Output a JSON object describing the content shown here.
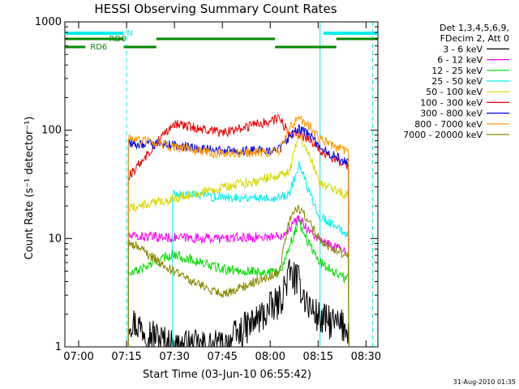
{
  "chart_data": {
    "type": "line",
    "title": "HESSI Observing Summary Count Rates",
    "xlabel": "Start Time (03-Jun-10 06:55:42)",
    "ylabel": "Count Rate (s⁻¹ detector⁻¹)",
    "y_scale": "log",
    "ylim": [
      1,
      1000
    ],
    "xlim": [
      6.928,
      8.562
    ],
    "x_ticks": [
      {
        "value": 7.0,
        "label": "07:00"
      },
      {
        "value": 7.25,
        "label": "07:15"
      },
      {
        "value": 7.5,
        "label": "07:30"
      },
      {
        "value": 7.75,
        "label": "07:45"
      },
      {
        "value": 8.0,
        "label": "08:00"
      },
      {
        "value": 8.25,
        "label": "08:15"
      },
      {
        "value": 8.5,
        "label": "08:30"
      }
    ],
    "y_ticks": [
      {
        "value": 1,
        "label": "1"
      },
      {
        "value": 10,
        "label": "10"
      },
      {
        "value": 100,
        "label": "100"
      },
      {
        "value": 1000,
        "label": "1000"
      }
    ],
    "legend": {
      "placement": "right",
      "header": [
        "Det 1,3,4,5,6,9,",
        "FDecim 2, Att 0"
      ]
    },
    "series": [
      {
        "name": "3 - 6 keV",
        "color": "#000000",
        "x": [
          6.928,
          7.26,
          7.49,
          7.75,
          8.05,
          8.1,
          8.15,
          8.2,
          8.26,
          8.4,
          8.41,
          8.562
        ],
        "y": [
          null,
          1.8,
          1.0,
          1.0,
          2.6,
          4.8,
          3.9,
          2.4,
          1.8,
          1.5,
          null,
          null
        ]
      },
      {
        "name": "6 - 12 keV",
        "color": "#ff00ff",
        "x": [
          6.928,
          7.26,
          7.49,
          7.75,
          8.05,
          8.1,
          8.15,
          8.2,
          8.26,
          8.4,
          8.41,
          8.562
        ],
        "y": [
          null,
          10.5,
          10.2,
          10.0,
          10.5,
          12.5,
          15.5,
          12.0,
          9.5,
          7.5,
          null,
          null
        ]
      },
      {
        "name": "12 - 25 keV",
        "color": "#00dd00",
        "x": [
          6.928,
          7.26,
          7.49,
          7.75,
          8.05,
          8.1,
          8.15,
          8.2,
          8.26,
          8.4,
          8.41,
          8.562
        ],
        "y": [
          null,
          4.6,
          7.2,
          5.2,
          4.8,
          8.5,
          14.5,
          9.0,
          6.0,
          4.2,
          null,
          null
        ]
      },
      {
        "name": "25 - 50 keV",
        "color": "#00eeee",
        "x": [
          6.928,
          7.26,
          7.49,
          7.75,
          8.05,
          8.1,
          8.15,
          8.2,
          8.26,
          8.4,
          8.41,
          8.562
        ],
        "y": [
          null,
          null,
          26,
          24,
          24,
          26,
          48,
          28,
          16,
          11,
          null,
          null
        ]
      },
      {
        "name": "50 - 100 keV",
        "color": "#d8d800",
        "x": [
          6.928,
          7.26,
          7.49,
          7.75,
          8.05,
          8.1,
          8.15,
          8.2,
          8.26,
          8.4,
          8.41,
          8.562
        ],
        "y": [
          null,
          19,
          null,
          null,
          null,
          40,
          95,
          60,
          33,
          25,
          null,
          null
        ]
      },
      {
        "name": "100 - 300 keV",
        "color": "#ee0000",
        "x": [
          6.928,
          7.26,
          7.49,
          7.75,
          8.05,
          8.1,
          8.15,
          8.2,
          8.26,
          8.4,
          8.41,
          8.562
        ],
        "y": [
          null,
          37,
          115,
          94,
          128,
          92,
          90,
          85,
          65,
          47,
          null,
          null
        ]
      },
      {
        "name": "300 - 800 keV",
        "color": "#0000ee",
        "x": [
          6.928,
          7.26,
          7.49,
          7.75,
          8.05,
          8.1,
          8.15,
          8.2,
          8.26,
          8.4,
          8.41,
          8.562
        ],
        "y": [
          null,
          75,
          73,
          64,
          66,
          88,
          102,
          92,
          68,
          50,
          null,
          null
        ]
      },
      {
        "name": "800 - 7000 keV",
        "color": "#ff9900",
        "x": [
          6.928,
          7.26,
          7.49,
          7.75,
          8.05,
          8.1,
          8.15,
          8.2,
          8.26,
          8.4,
          8.41,
          8.562
        ],
        "y": [
          null,
          85,
          70,
          60,
          64,
          105,
          128,
          112,
          82,
          63,
          null,
          null
        ]
      },
      {
        "name": "7000 - 20000 keV",
        "color": "#888800",
        "x": [
          6.928,
          7.26,
          7.49,
          7.75,
          8.05,
          8.1,
          8.15,
          8.2,
          8.26,
          8.4,
          8.41,
          8.562
        ],
        "y": [
          null,
          9.5,
          5.0,
          3.0,
          5.0,
          15.5,
          19.0,
          14.5,
          9.5,
          7.0,
          null,
          null
        ]
      }
    ],
    "state_bars": [
      {
        "label": "N",
        "color": "#00eeee",
        "row": "top",
        "segments": [
          [
            6.928,
            7.235
          ],
          [
            8.278,
            8.562
          ]
        ]
      },
      {
        "label": "RD0",
        "color": "#008800",
        "row": "middle",
        "segments": [
          [
            6.928,
            7.235
          ],
          [
            7.405,
            8.025
          ],
          [
            8.345,
            8.562
          ]
        ]
      },
      {
        "label": "RD6",
        "color": "#008800",
        "row": "bottom",
        "segments": [
          [
            6.928,
            7.035
          ],
          [
            7.235,
            7.405
          ],
          [
            8.025,
            8.345
          ]
        ]
      }
    ],
    "vlines": [
      {
        "x": 7.25,
        "style": "dashed"
      },
      {
        "x": 8.26,
        "style": "solid"
      },
      {
        "x": 8.535,
        "style": "dashed"
      }
    ]
  },
  "footer": {
    "timestamp": "31-Aug-2010 01:35"
  }
}
